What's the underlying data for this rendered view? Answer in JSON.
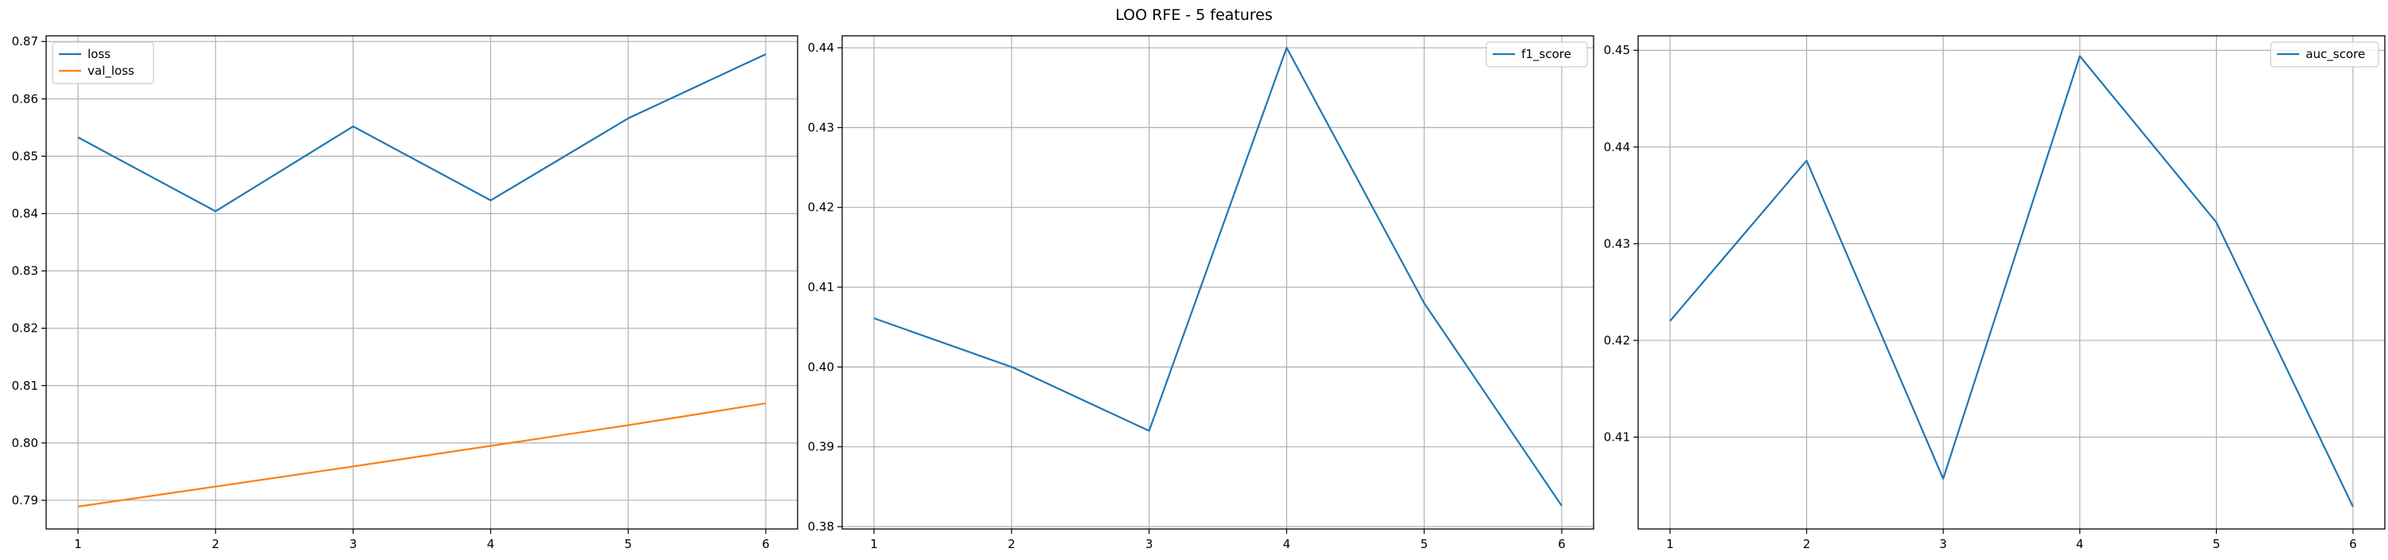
{
  "figure": {
    "title": "LOO RFE - 5 features"
  },
  "colors": {
    "series1": "#1f77b4",
    "series2": "#ff7f0e",
    "grid": "#b0b0b0",
    "axes": "#000000"
  },
  "chart_data": [
    {
      "type": "line",
      "x": [
        1,
        2,
        3,
        4,
        5,
        6
      ],
      "xticks": [
        "1",
        "2",
        "3",
        "4",
        "5",
        "6"
      ],
      "ylim": [
        0.785,
        0.871
      ],
      "yticks": [
        0.79,
        0.8,
        0.81,
        0.82,
        0.83,
        0.84,
        0.85,
        0.86,
        0.87
      ],
      "ytick_labels": [
        "0.79",
        "0.80",
        "0.81",
        "0.82",
        "0.83",
        "0.84",
        "0.85",
        "0.86",
        "0.87"
      ],
      "grid": true,
      "legend_position": "upper-left",
      "series": [
        {
          "name": "loss",
          "color": "#1f77b4",
          "values": [
            0.8533,
            0.8404,
            0.8552,
            0.8423,
            0.8566,
            0.8678
          ]
        },
        {
          "name": "val_loss",
          "color": "#ff7f0e",
          "values": [
            0.7889,
            0.7924,
            0.7959,
            0.7995,
            0.8031,
            0.8069
          ]
        }
      ]
    },
    {
      "type": "line",
      "x": [
        1,
        2,
        3,
        4,
        5,
        6
      ],
      "xticks": [
        "1",
        "2",
        "3",
        "4",
        "5",
        "6"
      ],
      "ylim": [
        0.3797,
        0.4415
      ],
      "yticks": [
        0.38,
        0.39,
        0.4,
        0.41,
        0.42,
        0.43,
        0.44
      ],
      "ytick_labels": [
        "0.38",
        "0.39",
        "0.40",
        "0.41",
        "0.42",
        "0.43",
        "0.44"
      ],
      "grid": true,
      "legend_position": "upper-right",
      "series": [
        {
          "name": "f1_score",
          "color": "#1f77b4",
          "values": [
            0.4061,
            0.4,
            0.392,
            0.44,
            0.408,
            0.3826
          ]
        }
      ]
    },
    {
      "type": "line",
      "x": [
        1,
        2,
        3,
        4,
        5,
        6
      ],
      "xticks": [
        "1",
        "2",
        "3",
        "4",
        "5",
        "6"
      ],
      "ylim": [
        0.4005,
        0.4515
      ],
      "yticks": [
        0.41,
        0.42,
        0.43,
        0.44,
        0.45
      ],
      "ytick_labels": [
        "0.41",
        "0.42",
        "0.43",
        "0.44",
        "0.45"
      ],
      "grid": true,
      "legend_position": "upper-right",
      "series": [
        {
          "name": "auc_score",
          "color": "#1f77b4",
          "values": [
            0.422,
            0.4386,
            0.4057,
            0.4494,
            0.4322,
            0.4028
          ]
        }
      ]
    }
  ]
}
